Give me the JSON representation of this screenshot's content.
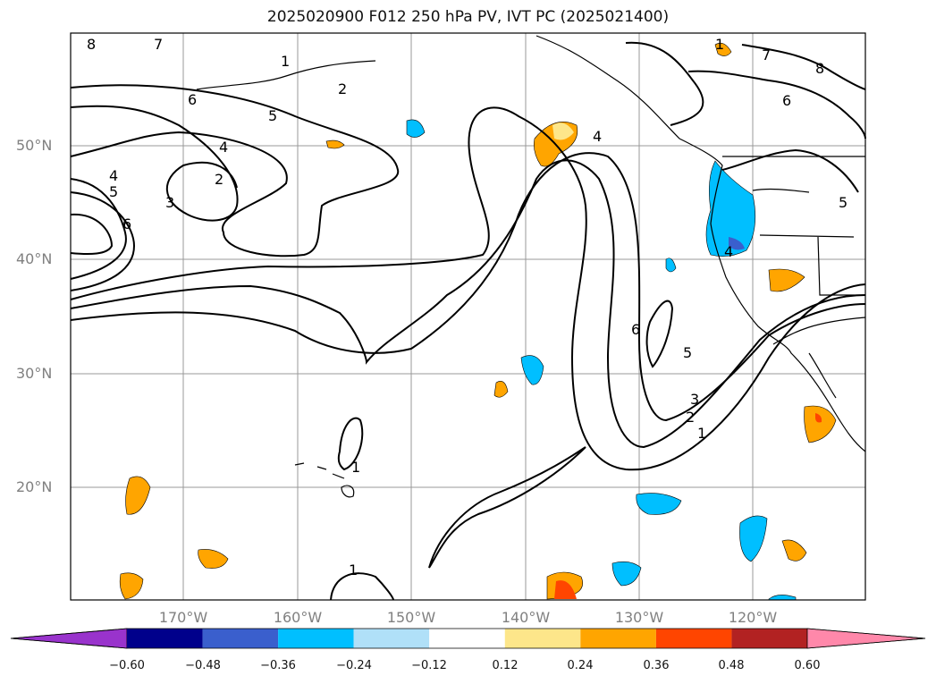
{
  "title": "2025020900 F012 250 hPa PV, IVT PC (2025021400)",
  "lat_labels": [
    "50°N",
    "40°N",
    "30°N",
    "20°N"
  ],
  "lon_labels": [
    "170°W",
    "160°W",
    "150°W",
    "140°W",
    "130°W",
    "120°W"
  ],
  "contour_labels": [
    "8",
    "7",
    "1",
    "2",
    "6",
    "5",
    "4",
    "4",
    "5",
    "2",
    "3",
    "6",
    "6",
    "5",
    "3",
    "2",
    "1",
    "1",
    "1",
    "4",
    "8",
    "7",
    "6",
    "5",
    "1",
    "4"
  ],
  "colorbar": {
    "ticks": [
      "−0.60",
      "−0.48",
      "−0.36",
      "−0.24",
      "−0.12",
      "0.12",
      "0.24",
      "0.36",
      "0.48",
      "0.60"
    ],
    "colors": [
      "#9933cc",
      "#00008b",
      "#3a5fcd",
      "#00bfff",
      "#b0e0f8",
      "#ffffff",
      "#fde68a",
      "#ffa500",
      "#ff4500",
      "#b22222",
      "#ff88aa"
    ]
  }
}
